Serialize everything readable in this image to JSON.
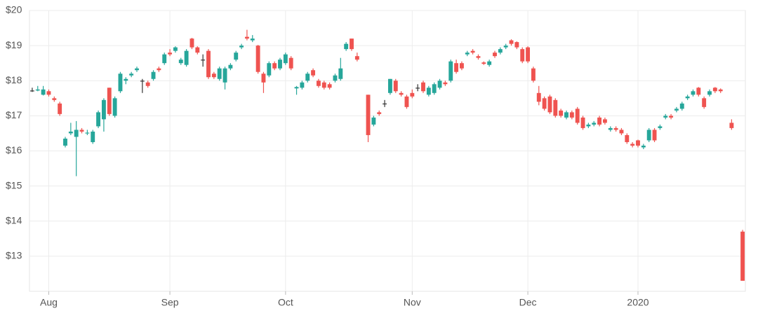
{
  "chart_data": {
    "type": "candlestick",
    "categories": [
      null,
      null,
      null,
      "Aug",
      null,
      null,
      null,
      null,
      null,
      null,
      null,
      null,
      null,
      null,
      null,
      null,
      null,
      null,
      null,
      null,
      null,
      null,
      null,
      null,
      null,
      "Sep",
      null,
      null,
      null,
      null,
      null,
      null,
      null,
      null,
      null,
      null,
      null,
      null,
      null,
      null,
      null,
      null,
      null,
      null,
      null,
      null,
      "Oct",
      null,
      null,
      null,
      null,
      null,
      null,
      null,
      null,
      null,
      null,
      null,
      null,
      null,
      null,
      null,
      null,
      null,
      null,
      null,
      null,
      null,
      null,
      "Nov",
      null,
      null,
      null,
      null,
      null,
      null,
      null,
      null,
      null,
      null,
      null,
      null,
      null,
      null,
      null,
      null,
      null,
      null,
      null,
      null,
      "Dec",
      null,
      null,
      null,
      null,
      null,
      null,
      null,
      null,
      null,
      null,
      null,
      null,
      null,
      null,
      null,
      null,
      null,
      null,
      null,
      "2020",
      null,
      null,
      null,
      null,
      null,
      null,
      null,
      null,
      null,
      null,
      null,
      null,
      null,
      null,
      null,
      null,
      null,
      null,
      null
    ],
    "open": [
      17.72,
      17.72,
      17.6,
      17.7,
      17.5,
      17.35,
      16.15,
      16.5,
      16.4,
      16.6,
      16.5,
      16.25,
      16.7,
      16.9,
      17.8,
      17.0,
      17.7,
      18.0,
      18.15,
      18.3,
      18.0,
      17.95,
      18.05,
      18.35,
      18.5,
      18.8,
      18.85,
      18.5,
      18.45,
      19.2,
      18.95,
      18.6,
      18.85,
      18.2,
      18.05,
      17.95,
      18.35,
      18.6,
      18.95,
      19.25,
      19.15,
      19.0,
      18.2,
      18.15,
      18.5,
      18.35,
      18.5,
      18.65,
      17.78,
      17.8,
      18.0,
      18.3,
      18.0,
      17.95,
      17.9,
      18.0,
      18.05,
      18.9,
      19.2,
      18.7,
      null,
      17.6,
      16.75,
      17.1,
      17.35,
      17.65,
      18.0,
      17.65,
      17.55,
      17.65,
      17.8,
      17.95,
      17.6,
      17.65,
      17.8,
      17.95,
      18.0,
      18.5,
      18.5,
      18.75,
      18.85,
      18.7,
      18.52,
      18.45,
      18.8,
      18.8,
      18.95,
      19.15,
      19.1,
      18.9,
      18.95,
      18.35,
      17.65,
      17.5,
      17.55,
      17.45,
      17.15,
      16.95,
      17.1,
      17.2,
      16.95,
      16.7,
      16.75,
      16.95,
      16.9,
      16.6,
      16.65,
      16.6,
      16.45,
      16.2,
      16.3,
      16.1,
      16.3,
      16.6,
      16.65,
      16.95,
      17.0,
      17.15,
      17.2,
      17.5,
      17.6,
      17.8,
      17.5,
      17.6,
      17.8,
      17.75,
      null,
      16.8,
      null,
      13.7
    ],
    "high": [
      17.8,
      17.85,
      17.85,
      17.75,
      17.55,
      17.4,
      16.4,
      16.8,
      16.85,
      16.65,
      16.6,
      16.6,
      17.15,
      17.5,
      17.8,
      17.55,
      18.25,
      18.1,
      18.25,
      18.4,
      18.05,
      18.0,
      18.3,
      18.4,
      18.8,
      18.9,
      18.98,
      18.65,
      18.9,
      19.22,
      18.98,
      18.75,
      18.9,
      18.25,
      18.4,
      18.4,
      18.5,
      18.85,
      19.05,
      19.45,
      19.3,
      19.02,
      18.25,
      18.55,
      18.55,
      18.65,
      18.8,
      18.7,
      17.85,
      18.0,
      18.25,
      18.35,
      18.05,
      18.0,
      17.95,
      18.2,
      18.65,
      19.1,
      19.2,
      18.8,
      null,
      17.6,
      17.0,
      17.15,
      17.45,
      18.05,
      18.05,
      17.7,
      17.6,
      17.75,
      17.9,
      18.0,
      17.85,
      17.95,
      18.05,
      18.0,
      18.6,
      18.6,
      18.55,
      18.85,
      18.9,
      18.75,
      18.55,
      18.6,
      18.85,
      18.95,
      19.05,
      19.18,
      19.12,
      18.95,
      18.98,
      18.4,
      17.85,
      17.55,
      17.6,
      17.5,
      17.2,
      17.15,
      17.15,
      17.25,
      17.0,
      16.8,
      16.85,
      17.0,
      16.95,
      16.7,
      16.7,
      16.65,
      16.5,
      16.25,
      16.32,
      16.2,
      16.65,
      16.65,
      16.75,
      17.05,
      17.05,
      17.25,
      17.4,
      17.6,
      17.75,
      17.82,
      17.55,
      17.75,
      17.82,
      17.78,
      null,
      16.9,
      null,
      13.75
    ],
    "low": [
      17.68,
      17.7,
      17.58,
      17.55,
      17.4,
      17.0,
      16.1,
      16.45,
      15.28,
      16.5,
      16.45,
      16.2,
      16.65,
      16.55,
      17.0,
      16.95,
      17.65,
      17.9,
      18.1,
      18.25,
      17.65,
      17.8,
      18.0,
      18.25,
      18.45,
      18.7,
      18.8,
      18.45,
      18.4,
      18.9,
      18.75,
      18.4,
      18.05,
      18.05,
      18.0,
      17.75,
      18.3,
      18.55,
      18.9,
      19.15,
      19.1,
      18.2,
      17.65,
      18.1,
      18.3,
      18.3,
      18.45,
      18.3,
      17.6,
      17.75,
      17.95,
      18.1,
      17.8,
      17.75,
      17.75,
      17.95,
      18.0,
      18.85,
      18.85,
      18.55,
      null,
      16.25,
      16.7,
      17.0,
      17.25,
      17.6,
      17.65,
      17.55,
      17.2,
      17.5,
      17.7,
      17.65,
      17.55,
      17.6,
      17.75,
      17.85,
      17.95,
      18.2,
      18.3,
      18.7,
      18.75,
      18.6,
      18.45,
      18.4,
      18.65,
      18.75,
      18.9,
      19.0,
      18.9,
      18.5,
      18.5,
      17.95,
      17.3,
      17.15,
      17.05,
      16.95,
      16.95,
      16.9,
      16.9,
      16.75,
      16.6,
      16.65,
      16.7,
      16.7,
      16.75,
      16.55,
      16.55,
      16.45,
      16.2,
      16.1,
      16.1,
      16.05,
      16.25,
      16.25,
      16.6,
      16.9,
      16.9,
      17.1,
      17.15,
      17.45,
      17.55,
      17.55,
      17.2,
      17.55,
      17.65,
      17.65,
      null,
      16.6,
      null,
      12.3
    ],
    "close": [
      17.72,
      17.75,
      17.75,
      17.6,
      17.45,
      17.05,
      16.35,
      16.55,
      16.6,
      16.55,
      16.52,
      16.55,
      17.1,
      17.45,
      17.05,
      17.5,
      18.2,
      18.05,
      18.2,
      18.35,
      18.0,
      17.85,
      18.25,
      18.3,
      18.75,
      18.75,
      18.95,
      18.6,
      18.85,
      18.95,
      18.8,
      18.6,
      18.1,
      18.1,
      18.35,
      18.35,
      18.45,
      18.8,
      19.0,
      19.2,
      19.2,
      18.25,
      17.95,
      18.5,
      18.35,
      18.6,
      18.75,
      18.35,
      17.82,
      17.95,
      18.2,
      18.15,
      17.85,
      17.8,
      17.8,
      18.15,
      18.35,
      19.05,
      18.9,
      18.6,
      null,
      16.45,
      16.95,
      17.05,
      17.35,
      18.05,
      17.7,
      17.6,
      17.25,
      17.55,
      17.8,
      17.7,
      17.8,
      17.9,
      18.0,
      17.9,
      18.55,
      18.25,
      18.35,
      18.8,
      18.8,
      18.65,
      18.48,
      18.55,
      18.7,
      18.9,
      19.0,
      19.05,
      18.95,
      18.55,
      18.55,
      18.0,
      17.4,
      17.2,
      17.1,
      17.0,
      17.0,
      17.1,
      16.95,
      16.8,
      16.65,
      16.75,
      16.8,
      16.75,
      16.8,
      16.65,
      16.6,
      16.5,
      16.25,
      16.15,
      16.15,
      16.15,
      16.6,
      16.3,
      16.7,
      17.0,
      16.95,
      17.2,
      17.35,
      17.55,
      17.7,
      17.6,
      17.25,
      17.7,
      17.7,
      17.7,
      null,
      16.65,
      null,
      12.3
    ],
    "up_color": "#26a69a",
    "down_color": "#ef5350",
    "flat_color": "#333333",
    "ylim": [
      12,
      20
    ],
    "yticks": [
      {
        "value": 13,
        "label": "$13"
      },
      {
        "value": 14,
        "label": "$14"
      },
      {
        "value": 15,
        "label": "$15"
      },
      {
        "value": 16,
        "label": "$16"
      },
      {
        "value": 17,
        "label": "$17"
      },
      {
        "value": 18,
        "label": "$18"
      },
      {
        "value": 19,
        "label": "$19"
      },
      {
        "value": 20,
        "label": "$20"
      }
    ],
    "grid": true
  }
}
